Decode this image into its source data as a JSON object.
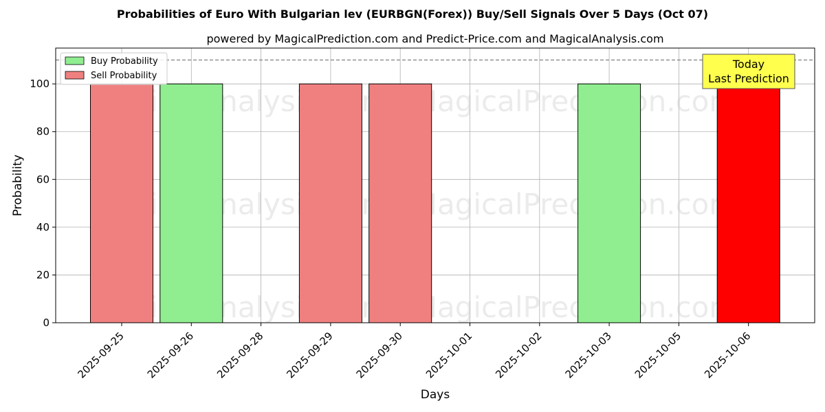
{
  "chart_data": {
    "type": "bar",
    "title": "Probabilities of Euro With Bulgarian lev (EURBGN(Forex)) Buy/Sell Signals Over 5 Days (Oct 07)",
    "subtitle": "powered by MagicalPrediction.com and Predict-Price.com and MagicalAnalysis.com",
    "xlabel": "Days",
    "ylabel": "Probability",
    "ylim": [
      0,
      115
    ],
    "yticks": [
      "0",
      "20",
      "40",
      "60",
      "80",
      "100"
    ],
    "reference_line": 110,
    "categories": [
      "2025-09-25",
      "2025-09-26",
      "2025-09-28",
      "2025-09-29",
      "2025-09-30",
      "2025-10-01",
      "2025-10-02",
      "2025-10-03",
      "2025-10-05",
      "2025-10-06"
    ],
    "bars": [
      {
        "category": "2025-09-25",
        "series": "Sell Probability",
        "value": 100
      },
      {
        "category": "2025-09-26",
        "series": "Buy Probability",
        "value": 100
      },
      {
        "category": "2025-09-29",
        "series": "Sell Probability",
        "value": 100
      },
      {
        "category": "2025-09-30",
        "series": "Sell Probability",
        "value": 100
      },
      {
        "category": "2025-10-03",
        "series": "Buy Probability",
        "value": 100
      },
      {
        "category": "2025-10-06",
        "series": "Sell Probability",
        "value": 100,
        "highlight": true
      }
    ],
    "legend": {
      "position": "top-left",
      "entries": [
        {
          "label": "Buy Probability",
          "color": "#90ee90"
        },
        {
          "label": "Sell Probability",
          "color": "#f08080"
        }
      ]
    },
    "highlight_color": "#ff0000",
    "annotation": {
      "line1": "Today",
      "line2": "Last Prediction",
      "color": "#ffff4d"
    },
    "watermarks": [
      "MagicalAnalysis.com",
      "MagicalPrediction.com"
    ],
    "grid": true
  }
}
